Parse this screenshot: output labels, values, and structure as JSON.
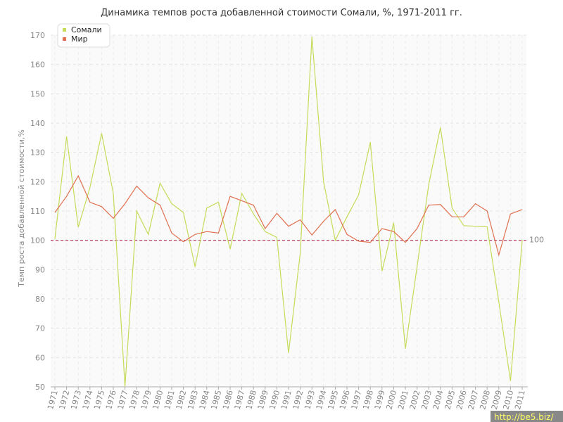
{
  "chart_data": {
    "type": "line",
    "title": "Динамика темпов роста добавленной стоимости Сомали, %, 1971-2011 гг.",
    "xlabel": "",
    "ylabel": "Темп роста добавленной стоимости,%",
    "ylim": [
      50,
      170
    ],
    "yticks": [
      50,
      60,
      70,
      80,
      90,
      100,
      110,
      120,
      130,
      140,
      150,
      160,
      170
    ],
    "x": [
      "1971",
      "1972",
      "1973",
      "1974",
      "1975",
      "1976",
      "1977",
      "1978",
      "1979",
      "1980",
      "1981",
      "1982",
      "1983",
      "1984",
      "1985",
      "1986",
      "1987",
      "1988",
      "1989",
      "1990",
      "1991",
      "1992",
      "1993",
      "1994",
      "1995",
      "1996",
      "1997",
      "1998",
      "1999",
      "2000",
      "2001",
      "2002",
      "2003",
      "2004",
      "2005",
      "2006",
      "2007",
      "2008",
      "2009",
      "2010",
      "2011"
    ],
    "series": [
      {
        "name": "Сомали",
        "color": "#c4dc5a",
        "values": [
          100.5,
          135.5,
          104.5,
          118,
          136.5,
          116,
          50,
          110,
          102,
          119.5,
          112.5,
          109.5,
          91,
          111,
          113,
          97,
          116,
          109,
          103,
          101,
          61.5,
          95.5,
          169.5,
          120,
          100,
          108,
          115.5,
          133.5,
          89.5,
          106,
          63,
          91,
          119,
          138.5,
          111,
          105,
          104.8,
          104.6,
          79,
          52,
          100
        ]
      },
      {
        "name": "Мир",
        "color": "#e07050",
        "values": [
          109.5,
          115,
          122,
          113,
          111.5,
          107.5,
          112.5,
          118.5,
          114.5,
          112,
          102.5,
          99.5,
          102,
          103,
          102.5,
          115,
          113.5,
          112,
          104,
          109.2,
          104.8,
          107,
          101.8,
          106.5,
          110.5,
          102,
          99.7,
          99.3,
          104,
          103,
          99.3,
          104,
          112,
          112.2,
          108,
          108,
          112.5,
          110,
          95,
          109,
          110.5
        ]
      }
    ],
    "reference_line": {
      "value": 100,
      "label": "100",
      "color": "#b03050"
    },
    "grid": true,
    "legend_position": "top-left"
  },
  "watermark": "http://be5.biz/"
}
